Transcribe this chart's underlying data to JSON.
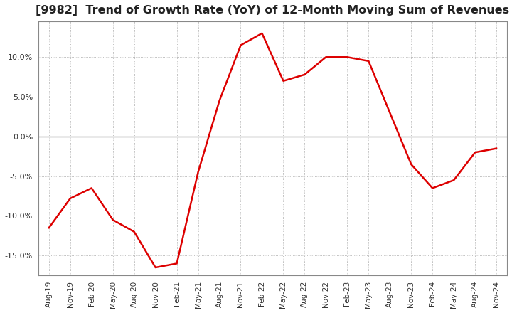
{
  "title": "[9982]  Trend of Growth Rate (YoY) of 12-Month Moving Sum of Revenues",
  "title_fontsize": 11.5,
  "line_color": "#dd0000",
  "background_color": "#ffffff",
  "grid_color": "#aaaaaa",
  "x_labels": [
    "Aug-19",
    "Nov-19",
    "Feb-20",
    "May-20",
    "Aug-20",
    "Nov-20",
    "Feb-21",
    "May-21",
    "Aug-21",
    "Nov-21",
    "Feb-22",
    "May-22",
    "Aug-22",
    "Nov-22",
    "Feb-23",
    "May-23",
    "Aug-23",
    "Nov-23",
    "Feb-24",
    "May-24",
    "Aug-24",
    "Nov-24"
  ],
  "y_values": [
    -11.5,
    -7.8,
    -6.5,
    -10.5,
    -12.0,
    -16.5,
    -16.0,
    -4.5,
    4.5,
    11.5,
    13.0,
    7.0,
    7.8,
    10.0,
    10.0,
    9.5,
    3.0,
    -3.5,
    -6.5,
    -5.5,
    -2.0,
    -1.5
  ],
  "ylim": [
    -17.5,
    14.5
  ],
  "yticks": [
    -15.0,
    -10.0,
    -5.0,
    0.0,
    5.0,
    10.0
  ],
  "zero_line_color": "#555555",
  "spine_color": "#888888"
}
